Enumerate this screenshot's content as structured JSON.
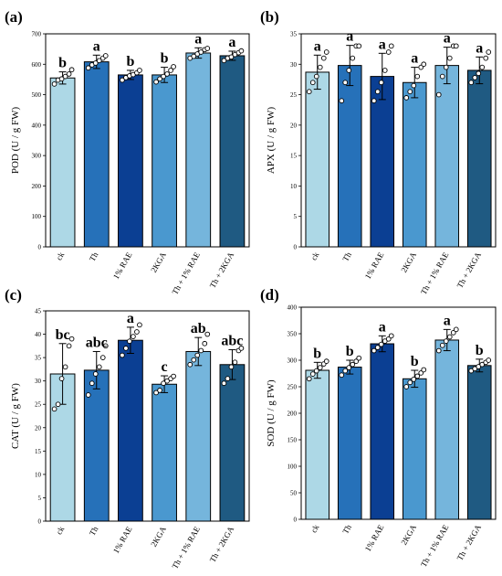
{
  "chart_data": [
    {
      "panel": "(a)",
      "type": "bar",
      "categories": [
        "ck",
        "Th",
        "1% RAE",
        "2KGA",
        "Th + 1% RAE",
        "Th + 2KGA"
      ],
      "values": [
        555,
        608,
        565,
        565,
        637,
        628
      ],
      "errors": [
        20,
        22,
        15,
        25,
        17,
        15
      ],
      "letters": [
        "b",
        "a",
        "b",
        "b",
        "a",
        "a"
      ],
      "points": [
        [
          535,
          548,
          552,
          560,
          568,
          582
        ],
        [
          588,
          598,
          604,
          612,
          620,
          628
        ],
        [
          548,
          556,
          562,
          566,
          572,
          580
        ],
        [
          542,
          552,
          560,
          568,
          580,
          592
        ],
        [
          620,
          626,
          634,
          640,
          648,
          652
        ],
        [
          612,
          620,
          624,
          632,
          638,
          644
        ]
      ],
      "xlabel": "",
      "ylabel": "POD (U / g FW)",
      "ylim": [
        0,
        700
      ],
      "yticks": [
        0,
        100,
        200,
        300,
        400,
        500,
        600,
        700
      ],
      "colors": [
        "#add8e6",
        "#2671b9",
        "#0b3f93",
        "#4a98cf",
        "#75b5dc",
        "#1f5a82"
      ]
    },
    {
      "panel": "(b)",
      "type": "bar",
      "categories": [
        "ck",
        "Th",
        "1% RAE",
        "2KGA",
        "Th + 1% RAE",
        "Th + 2KGA"
      ],
      "values": [
        28.7,
        29.8,
        28.0,
        27.0,
        29.8,
        29.0
      ],
      "errors": [
        2.8,
        3.3,
        3.8,
        2.5,
        3.0,
        2.2
      ],
      "letters": [
        "a",
        "a",
        "a",
        "a",
        "a",
        "a"
      ],
      "points": [
        [
          25.5,
          27,
          28,
          29.5,
          31,
          32
        ],
        [
          24,
          27,
          29,
          31,
          33,
          33
        ],
        [
          24,
          25.5,
          27,
          29,
          32,
          33
        ],
        [
          24.5,
          25.5,
          26.5,
          28,
          29.5,
          30
        ],
        [
          25,
          28,
          29.5,
          31,
          33,
          33
        ],
        [
          27,
          27.8,
          28.5,
          29.5,
          31,
          32
        ]
      ],
      "xlabel": "",
      "ylabel": "APX (U / g FW)",
      "ylim": [
        0,
        35
      ],
      "yticks": [
        0,
        5,
        10,
        15,
        20,
        25,
        30,
        35
      ],
      "colors": [
        "#add8e6",
        "#2671b9",
        "#0b3f93",
        "#4a98cf",
        "#75b5dc",
        "#1f5a82"
      ]
    },
    {
      "panel": "(c)",
      "type": "bar",
      "categories": [
        "ck",
        "Th",
        "1% RAE",
        "2KGA",
        "Th + 1% RAE",
        "Th + 2KGA"
      ],
      "values": [
        31.5,
        32.3,
        38.7,
        29.3,
        36.3,
        33.5
      ],
      "errors": [
        6.5,
        4.0,
        2.8,
        1.8,
        3.0,
        3.2
      ],
      "letters": [
        "bc",
        "abc",
        "a",
        "c",
        "ab",
        "abc"
      ],
      "points": [
        [
          24,
          25,
          30.5,
          33,
          37.5,
          39
        ],
        [
          27,
          29.5,
          31.5,
          33,
          35,
          37.5
        ],
        [
          35.5,
          37,
          38.5,
          39.5,
          40.5,
          42
        ],
        [
          27.5,
          28,
          29.5,
          30,
          30.5,
          31
        ],
        [
          33.5,
          34.5,
          35.5,
          36.5,
          38,
          40
        ],
        [
          29.5,
          30.5,
          33,
          34,
          36.5,
          37
        ]
      ],
      "xlabel": "",
      "ylabel": "CAT (U / g FW)",
      "ylim": [
        0,
        45
      ],
      "yticks": [
        0,
        5,
        10,
        15,
        20,
        25,
        30,
        35,
        40,
        45
      ],
      "colors": [
        "#add8e6",
        "#2671b9",
        "#0b3f93",
        "#4a98cf",
        "#75b5dc",
        "#1f5a82"
      ]
    },
    {
      "panel": "(d)",
      "type": "bar",
      "categories": [
        "ck",
        "Th",
        "1% RAE",
        "2KGA",
        "Th + 1% RAE",
        "Th + 2KGA"
      ],
      "values": [
        281,
        287,
        331,
        265,
        338,
        290
      ],
      "errors": [
        15,
        13,
        15,
        16,
        20,
        12
      ],
      "letters": [
        "b",
        "b",
        "a",
        "b",
        "a",
        "b"
      ],
      "points": [
        [
          265,
          274,
          280,
          286,
          293,
          298
        ],
        [
          272,
          280,
          286,
          292,
          298,
          304
        ],
        [
          318,
          324,
          330,
          336,
          340,
          346
        ],
        [
          250,
          258,
          264,
          270,
          276,
          282
        ],
        [
          318,
          328,
          336,
          344,
          352,
          358
        ],
        [
          280,
          284,
          288,
          292,
          296,
          300
        ]
      ],
      "xlabel": "",
      "ylabel": "SOD (U / g FW)",
      "ylim": [
        0,
        400
      ],
      "yticks": [
        0,
        50,
        100,
        150,
        200,
        250,
        300,
        350,
        400
      ],
      "colors": [
        "#add8e6",
        "#2671b9",
        "#0b3f93",
        "#4a98cf",
        "#75b5dc",
        "#1f5a82"
      ]
    }
  ]
}
